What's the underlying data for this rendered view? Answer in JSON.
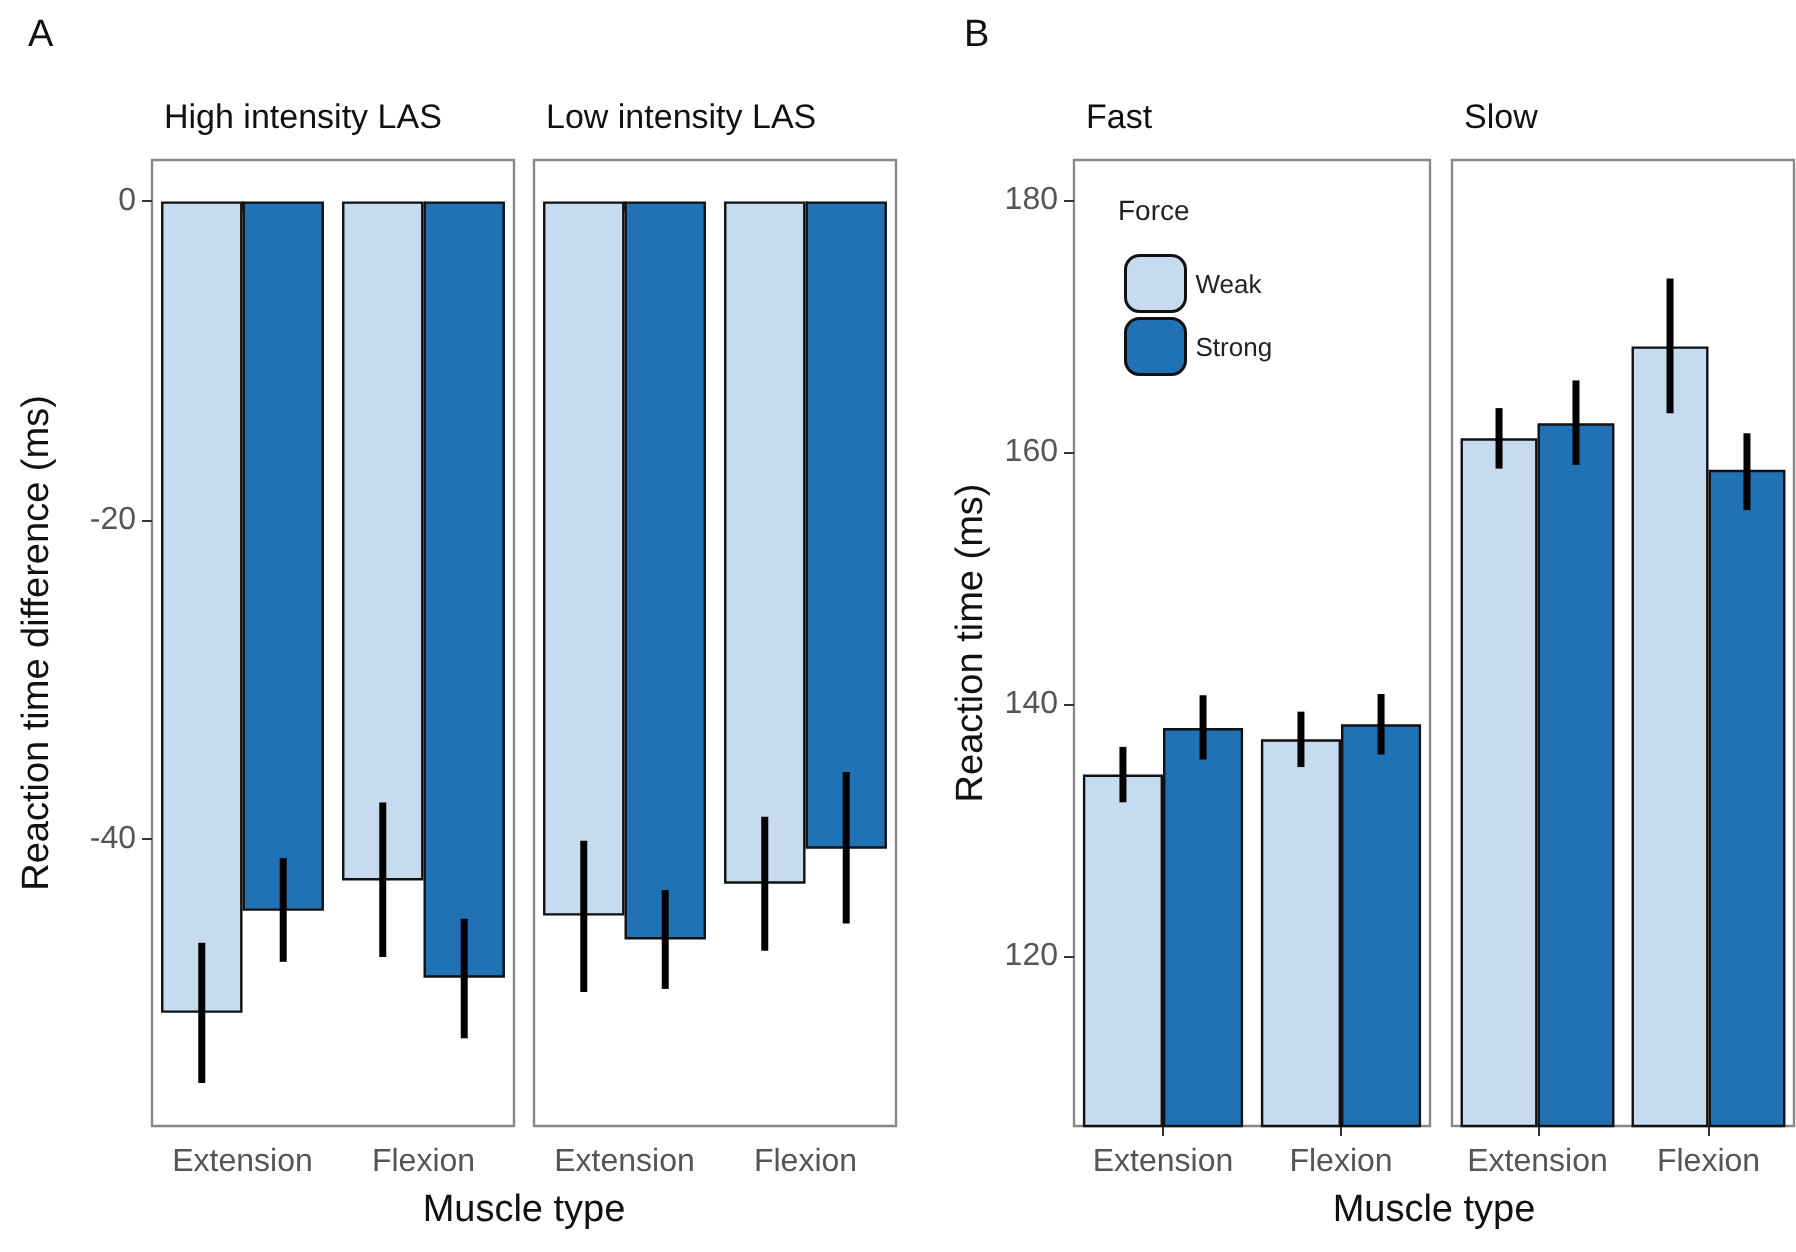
{
  "chart_data": [
    {
      "type": "bar",
      "title": "High intensity LAS",
      "annotations": [
        "A"
      ],
      "xlabel": "Muscle type",
      "ylabel": "Reaction time difference (ms)",
      "categories": [
        "Extension",
        "Flexion"
      ],
      "ylim": [
        -58,
        2.6
      ],
      "yticks": [
        -40,
        -20,
        0
      ],
      "grid": false,
      "legend": false,
      "series": [
        {
          "color": "#c6dbef",
          "values": [
            -50.9,
            -42.6
          ],
          "errors": [
            [
              -55.3,
              -46.5
            ],
            [
              -47.4,
              -37.7
            ]
          ]
        },
        {
          "color": "#2171b5",
          "values": [
            -44.5,
            -48.7
          ],
          "errors": [
            [
              -47.7,
              -41.2
            ],
            [
              -52.5,
              -45.0
            ]
          ]
        }
      ]
    },
    {
      "type": "bar",
      "title": "Low intensity LAS",
      "categories": [
        "Extension",
        "Flexion"
      ],
      "ylim": [
        -58,
        2.6
      ],
      "tick_labels": "x",
      "grid": false,
      "legend": false,
      "series": [
        {
          "color": "#c6dbef",
          "values": [
            -44.8,
            -42.8
          ],
          "errors": [
            [
              -49.6,
              -40.1
            ],
            [
              -47.0,
              -38.6
            ]
          ]
        },
        {
          "color": "#2171b5",
          "values": [
            -46.3,
            -40.6
          ],
          "errors": [
            [
              -49.4,
              -43.2
            ],
            [
              -45.3,
              -35.8
            ]
          ]
        }
      ]
    },
    {
      "type": "bar",
      "title": "Fast",
      "annotations": [
        "B"
      ],
      "xlabel": "Muscle type",
      "ylabel": "Reaction time (ms)",
      "legend_title": "Force",
      "categories": [
        "Extension",
        "Flexion"
      ],
      "ylim": [
        106.5,
        183.2
      ],
      "yticks": [
        120,
        140,
        160,
        180
      ],
      "grid": false,
      "legend": "top left",
      "series": [
        {
          "name": "Weak",
          "color": "#c6dbef",
          "values": [
            134.4,
            137.2
          ],
          "errors": [
            [
              132.2,
              136.6
            ],
            [
              135.0,
              139.4
            ]
          ]
        },
        {
          "name": "Strong",
          "color": "#2171b5",
          "values": [
            138.1,
            138.4
          ],
          "errors": [
            [
              135.6,
              140.7
            ],
            [
              136.0,
              140.8
            ]
          ]
        }
      ]
    },
    {
      "type": "bar",
      "title": "Slow",
      "categories": [
        "Extension",
        "Flexion"
      ],
      "ylim": [
        106.5,
        183.2
      ],
      "tick_labels": "x",
      "grid": false,
      "legend": false,
      "series": [
        {
          "color": "#c6dbef",
          "values": [
            161.1,
            168.4
          ],
          "errors": [
            [
              158.7,
              163.5
            ],
            [
              163.1,
              173.8
            ]
          ]
        },
        {
          "color": "#2171b5",
          "values": [
            162.3,
            158.6
          ],
          "errors": [
            [
              159.0,
              165.7
            ],
            [
              155.4,
              161.5
            ]
          ]
        }
      ]
    }
  ]
}
